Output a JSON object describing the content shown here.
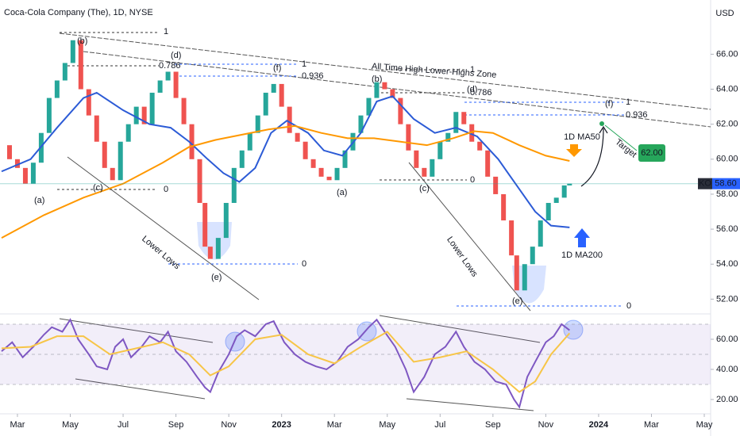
{
  "header": {
    "title": "Coca-Cola Company (The), 1D, NYSE",
    "currency": "USD"
  },
  "chart_data": [
    {
      "type": "candlestick",
      "series": [
        {
          "up_color": "#26a69a",
          "down_color": "#ef5350",
          "x": [
            -0.6,
            -0.3,
            0,
            0.3,
            0.6,
            0.9,
            1.2,
            1.5,
            1.8,
            2.1,
            2.4,
            2.7,
            3.0,
            3.3,
            3.6,
            3.9,
            4.2,
            4.5,
            4.8,
            5.1,
            5.4,
            5.7,
            6.0,
            6.3,
            6.6,
            6.9,
            7.1,
            7.3,
            7.6,
            7.9,
            8.2,
            8.5,
            8.8,
            9.1,
            9.4,
            9.7,
            10.0,
            10.3,
            10.6,
            10.9,
            11.2,
            11.5,
            11.8,
            12.1,
            12.4,
            12.7,
            13.0,
            13.3,
            13.6,
            13.9,
            14.2,
            14.5,
            14.8,
            15.1,
            15.4,
            15.7,
            16.0,
            16.3,
            16.6,
            16.9,
            17.2,
            17.5,
            17.8,
            18.1,
            18.4,
            18.7,
            18.9,
            19.2,
            19.5,
            19.8,
            20.1,
            20.4,
            20.7,
            20.9
          ],
          "values": [
            60.8,
            60,
            59.5,
            58.6,
            59.8,
            61.5,
            63.5,
            64.5,
            65.5,
            66.8,
            64,
            62.5,
            61,
            59.5,
            58.8,
            61,
            62,
            63,
            62,
            63.8,
            64.5,
            65,
            63.5,
            62,
            60,
            57.5,
            55,
            54.3,
            55.5,
            57.5,
            59.5,
            60.5,
            61.5,
            62.5,
            63.8,
            64.3,
            63,
            61.5,
            61,
            60,
            59.5,
            59,
            58.8,
            59.5,
            60.5,
            61.5,
            62.5,
            63.5,
            64.4,
            64,
            63.5,
            62,
            60.5,
            59.5,
            59,
            60,
            61,
            61.5,
            62.7,
            62,
            61,
            60.5,
            59,
            58,
            56.5,
            54.5,
            52.5,
            54,
            55,
            56.5,
            57.5,
            57.8,
            58.5,
            58.6
          ]
        },
        {
          "name": "1D MA50",
          "color": "#2c5bd6",
          "x": [
            -0.6,
            0.5,
            1.5,
            2.5,
            3.0,
            4.0,
            5.0,
            5.8,
            6.5,
            7.2,
            7.8,
            8.4,
            9.0,
            9.6,
            10.2,
            11.0,
            11.6,
            12.3,
            13.0,
            13.6,
            14.2,
            15.0,
            15.8,
            16.6,
            17.4,
            18.2,
            18.9,
            19.6,
            20.2,
            20.9
          ],
          "values": [
            59.3,
            60,
            61.8,
            63.5,
            63.8,
            62.8,
            62,
            61.8,
            61,
            60,
            59.2,
            58.7,
            59.5,
            61.5,
            62.2,
            61.5,
            60.5,
            60.2,
            61.5,
            63.3,
            63.6,
            62.3,
            61.5,
            61.8,
            61.3,
            60,
            58.5,
            57,
            56.2,
            56.1
          ]
        },
        {
          "name": "1D MA200",
          "color": "#ff9800",
          "x": [
            -0.6,
            1,
            2.5,
            4,
            5.5,
            6.5,
            7.5,
            8.5,
            9.5,
            10.5,
            11.5,
            12.5,
            13.5,
            14.5,
            15.5,
            16.5,
            17.3,
            18,
            19,
            20,
            20.9
          ],
          "values": [
            55.5,
            56.8,
            57.8,
            58.6,
            59.8,
            60.7,
            61.1,
            61.4,
            61.7,
            61.9,
            61.5,
            61.2,
            61.2,
            61.0,
            60.8,
            61.2,
            61.6,
            61.5,
            60.8,
            60.2,
            59.9
          ]
        }
      ],
      "xlim": [
        -0.66,
        26.24
      ],
      "xticks": [
        {
          "value": 0,
          "label": "Mar"
        },
        {
          "value": 2,
          "label": "May"
        },
        {
          "value": 4,
          "label": "Jul"
        },
        {
          "value": 6,
          "label": "Sep"
        },
        {
          "value": 8,
          "label": "Nov"
        },
        {
          "value": 10,
          "label": "2023"
        },
        {
          "value": 12,
          "label": "Mar"
        },
        {
          "value": 14,
          "label": "May"
        },
        {
          "value": 16,
          "label": "Jul"
        },
        {
          "value": 18,
          "label": "Sep"
        },
        {
          "value": 20,
          "label": "Nov"
        },
        {
          "value": 22,
          "label": "2024"
        },
        {
          "value": 24,
          "label": "Mar"
        },
        {
          "value": 26,
          "label": "May"
        }
      ],
      "ylim": [
        51.2,
        69.1
      ],
      "yticks": [
        {
          "value": 52,
          "label": "52.00"
        },
        {
          "value": 54,
          "label": "54.00"
        },
        {
          "value": 56,
          "label": "56.00"
        },
        {
          "value": 58,
          "label": "58.00"
        },
        {
          "value": 60,
          "label": "60.00"
        },
        {
          "value": 62,
          "label": "62.00"
        },
        {
          "value": 64,
          "label": "64.00"
        },
        {
          "value": 66,
          "label": "66.00"
        }
      ],
      "ticker": "KO",
      "last_price": {
        "value": 58.6,
        "label": "58.60"
      },
      "target": {
        "value": 62,
        "label": "62.00"
      },
      "annotations": [
        "(a)",
        "(b)",
        "(c)",
        "(d)",
        "(e)",
        "(f)",
        "(a)",
        "(b)",
        "(c)",
        "(d)",
        "(e)",
        "(f)",
        "1",
        "0.786",
        "0",
        "1",
        "0.936",
        "0",
        "1",
        "0.786",
        "0",
        "1",
        "0.936",
        "0",
        "All Time High Lower-Highs Zone",
        "Lower Lows",
        "Lower Lows",
        "Target"
      ]
    },
    {
      "type": "line",
      "series": [
        {
          "color": "#7e57c2",
          "x": [
            -0.6,
            -0.2,
            0.2,
            0.6,
            1.0,
            1.3,
            1.7,
            2.0,
            2.3,
            2.7,
            3.0,
            3.4,
            3.7,
            4.0,
            4.3,
            4.7,
            5.0,
            5.4,
            5.7,
            6.0,
            6.4,
            6.8,
            7.1,
            7.3,
            7.6,
            8.0,
            8.3,
            8.6,
            9.0,
            9.4,
            9.7,
            10.1,
            10.5,
            10.9,
            11.3,
            11.7,
            12.1,
            12.5,
            12.9,
            13.3,
            13.6,
            13.9,
            14.3,
            14.7,
            15.0,
            15.4,
            15.8,
            16.2,
            16.6,
            16.9,
            17.3,
            17.7,
            18.1,
            18.5,
            18.8,
            19.0,
            19.3,
            19.6,
            20.0,
            20.3,
            20.6,
            20.9
          ],
          "values": [
            52,
            58,
            48,
            55,
            63,
            68,
            65,
            73,
            60,
            50,
            42,
            40,
            55,
            60,
            48,
            55,
            62,
            58,
            65,
            52,
            45,
            35,
            28,
            25,
            38,
            50,
            62,
            66,
            62,
            70,
            72,
            58,
            50,
            45,
            42,
            40,
            45,
            55,
            60,
            68,
            73,
            65,
            55,
            40,
            25,
            35,
            50,
            55,
            65,
            55,
            45,
            40,
            32,
            30,
            20,
            15,
            35,
            45,
            58,
            62,
            70,
            66
          ]
        },
        {
          "color": "#f7c547",
          "x": [
            -0.6,
            0.5,
            1.5,
            2.5,
            3.5,
            4.5,
            5.5,
            6.5,
            7.3,
            8.0,
            9.0,
            10.0,
            11.0,
            12.0,
            13.0,
            14.0,
            15.0,
            16.0,
            17.0,
            18.0,
            19.0,
            19.6,
            20.2,
            20.9
          ],
          "values": [
            54,
            55,
            62,
            62,
            50,
            54,
            58,
            50,
            36,
            42,
            60,
            63,
            50,
            44,
            55,
            65,
            45,
            48,
            52,
            40,
            25,
            32,
            50,
            64
          ]
        }
      ],
      "ylim": [
        10.5,
        76.3
      ],
      "yticks": [
        {
          "value": 20,
          "label": "20.00"
        },
        {
          "value": 40,
          "label": "40.00"
        },
        {
          "value": 60,
          "label": "60.00"
        }
      ],
      "band": [
        30,
        70
      ],
      "levels": [
        30,
        50,
        70
      ]
    }
  ]
}
